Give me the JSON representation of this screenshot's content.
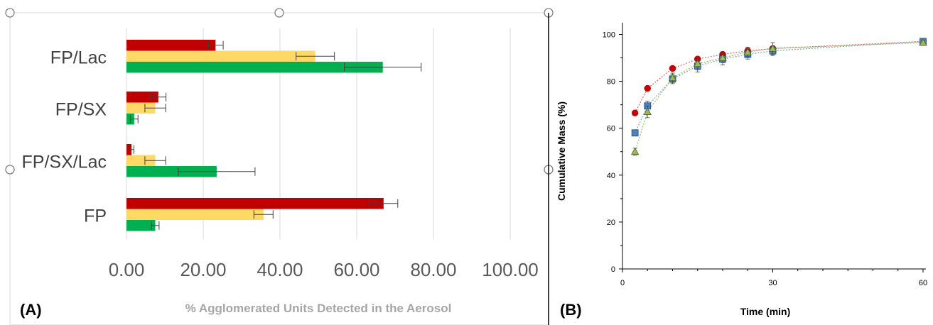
{
  "panels": {
    "a_label": "(A)",
    "b_label": "(B)"
  },
  "chart_data": [
    {
      "type": "bar",
      "orientation": "horizontal",
      "categories": [
        "FP/Lac",
        "FP/SX",
        "FP/SX/Lac",
        "FP"
      ],
      "series": [
        {
          "color": "#c00000",
          "values": [
            23.2,
            8.3,
            1.3,
            67.0
          ],
          "errors": [
            2.0,
            2.0,
            0.6,
            3.7
          ]
        },
        {
          "color": "#ffd966",
          "values": [
            49.2,
            7.5,
            7.5,
            35.7
          ],
          "errors": [
            5.0,
            2.7,
            2.7,
            2.5
          ]
        },
        {
          "color": "#00b050",
          "values": [
            66.8,
            2.0,
            23.5,
            7.5
          ],
          "errors": [
            10.0,
            1.0,
            10.0,
            1.0
          ]
        }
      ],
      "xlim": [
        0,
        100
      ],
      "xticks": [
        "0.00",
        "20.00",
        "40.00",
        "60.00",
        "80.00",
        "100.00"
      ],
      "xlabel": "% Agglomerated Units Detected in the Aerosol",
      "grid": "vertical",
      "colors": {
        "grid": "#d9d9d9",
        "tick_text": "#595959",
        "category_text": "#404040",
        "axis_title": "#a6a6a6",
        "error_bar": "#404040",
        "handle": "#7f7f7f"
      }
    },
    {
      "type": "scatter",
      "x_values": [
        2.5,
        5,
        10,
        15,
        20,
        25,
        30,
        60
      ],
      "series": [
        {
          "marker": "circle",
          "color": "#cc0000",
          "line_color": "#e06666",
          "y": [
            66.5,
            77.0,
            85.5,
            89.5,
            91.5,
            93.0,
            94.0,
            97.0
          ],
          "errors": [
            0.5,
            0.5,
            0.8,
            0.8,
            0.8,
            0.8,
            0.8,
            0.5
          ]
        },
        {
          "marker": "square",
          "color": "#4f81bd",
          "line_color": "#7ba3d6",
          "y": [
            58.0,
            69.5,
            81.0,
            86.5,
            89.5,
            91.5,
            93.0,
            97.0
          ],
          "errors": [
            1.0,
            2.0,
            2.0,
            2.5,
            2.5,
            2.0,
            2.0,
            1.0
          ]
        },
        {
          "marker": "triangle",
          "color": "#9bbb59",
          "line_color": "#9bbb59",
          "y": [
            50.0,
            67.0,
            81.5,
            87.5,
            90.0,
            92.5,
            94.0,
            96.5
          ],
          "errors": [
            1.5,
            2.5,
            2.0,
            2.5,
            2.0,
            2.0,
            2.5,
            1.0
          ]
        }
      ],
      "xlim": [
        0,
        60
      ],
      "ylim": [
        0,
        105
      ],
      "xticks": [
        "0",
        "30",
        "60"
      ],
      "yticks": [
        "0",
        "20",
        "40",
        "60",
        "80",
        "100"
      ],
      "xlabel": "Time (min)",
      "ylabel": "Cumulative Mass (%)",
      "grid": "off"
    }
  ]
}
